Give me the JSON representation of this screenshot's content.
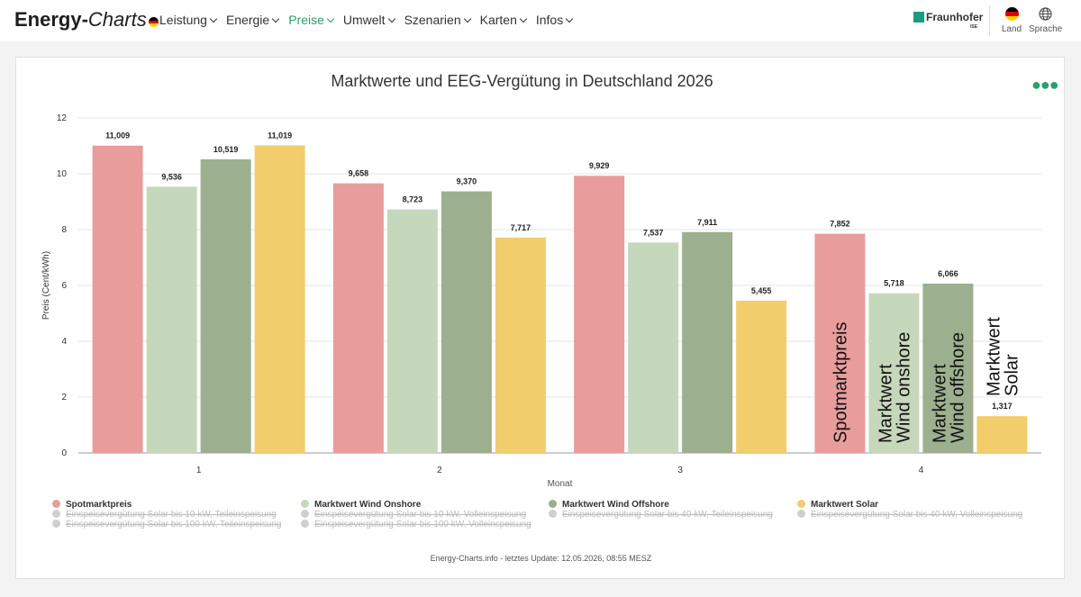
{
  "header": {
    "brand_bold": "Energy-",
    "brand_italic": "Charts",
    "nav": [
      {
        "label": "Leistung",
        "active": false
      },
      {
        "label": "Energie",
        "active": false
      },
      {
        "label": "Preise",
        "active": true
      },
      {
        "label": "Umwelt",
        "active": false
      },
      {
        "label": "Szenarien",
        "active": false
      },
      {
        "label": "Karten",
        "active": false
      },
      {
        "label": "Infos",
        "active": false
      }
    ],
    "partner": "Fraunhofer",
    "partner_sub": "ISE",
    "land_label": "Land",
    "sprache_label": "Sprache"
  },
  "colors": {
    "accent": "#2e9e6b",
    "spot": "#e89c9c",
    "onshore": "#c6d8bb",
    "offshore": "#9caf8f",
    "solar": "#f1cd6c"
  },
  "chart_data": {
    "type": "bar",
    "title": "Marktwerte und EEG-Vergütung in Deutschland 2026",
    "xlabel": "Monat",
    "ylabel": "Preis (Cent/kWh)",
    "ylim": [
      0,
      12
    ],
    "yticks": [
      "0",
      "2",
      "4",
      "6",
      "8",
      "10",
      "12"
    ],
    "grid": true,
    "categories": [
      "1",
      "2",
      "3",
      "4"
    ],
    "series": [
      {
        "name": "Spotmarktpreis",
        "values": [
          11.009,
          9.658,
          9.929,
          7.852
        ],
        "labels": [
          "11,009",
          "9,658",
          "9,929",
          "7,852"
        ]
      },
      {
        "name": "Marktwert Wind Onshore",
        "values": [
          9.536,
          8.723,
          7.537,
          5.718
        ],
        "labels": [
          "9,536",
          "8,723",
          "7,537",
          "5,718"
        ]
      },
      {
        "name": "Marktwert Wind Offshore",
        "values": [
          10.519,
          9.37,
          7.911,
          6.066
        ],
        "labels": [
          "10,519",
          "9,370",
          "7,911",
          "6,066"
        ]
      },
      {
        "name": "Marktwert Solar",
        "values": [
          11.019,
          7.717,
          5.455,
          1.317
        ],
        "labels": [
          "11,019",
          "7,717",
          "5,455",
          "1,317"
        ]
      }
    ],
    "bar_annotations": [
      [
        "Spotmarktpreis"
      ],
      [
        "Marktwert",
        "Wind onshore"
      ],
      [
        "Marktwert",
        "Wind offshore"
      ],
      [
        "Marktwert",
        "Solar"
      ]
    ],
    "legend": [
      {
        "label": "Spotmarktpreis",
        "active": true
      },
      {
        "label": "Marktwert Wind Onshore",
        "active": true
      },
      {
        "label": "Marktwert Wind Offshore",
        "active": true
      },
      {
        "label": "Marktwert Solar",
        "active": true
      },
      {
        "label": "Einspeisevergütung Solar bis 10 kW, Teileinspeisung",
        "active": false
      },
      {
        "label": "Einspeisevergütung Solar bis 10 kW, Volleinspeisung",
        "active": false
      },
      {
        "label": "Einspeisevergütung Solar bis 40 kW, Teileinspeisung",
        "active": false
      },
      {
        "label": "Einspeisevergütung Solar bis 40 kW, Volleinspeisung",
        "active": false
      },
      {
        "label": "Einspeisevergütung Solar bis 100 kW, Teileinspeisung",
        "active": false
      },
      {
        "label": "Einspeisevergütung Solar bis 100 kW, Volleinspeisung",
        "active": false
      }
    ],
    "legend_placement": "bottom"
  },
  "footer": "Energy-Charts.info - letztes Update: 12.05.2026, 08:55 MESZ"
}
